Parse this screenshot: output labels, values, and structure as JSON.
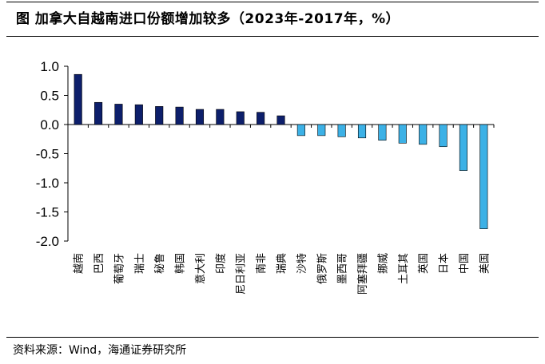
{
  "title": "图  加拿大自越南进口份额增加较多（2023年-2017年，%）",
  "source": "资料来源：Wind，海通证券研究所",
  "colors": {
    "positive": "#0d1f6b",
    "negative": "#3cb1e6"
  },
  "chart_data": {
    "type": "bar",
    "title": "图  加拿大自越南进口份额增加较多（2023年-2017年，%）",
    "xlabel": "",
    "ylabel": "",
    "ylim": [
      -2.0,
      1.0
    ],
    "yticks": [
      "1.0",
      "0.5",
      "0.0",
      "-0.5",
      "-1.0",
      "-1.5",
      "-2.0"
    ],
    "grid": false,
    "legend": "none",
    "categories": [
      "越南",
      "巴西",
      "葡萄牙",
      "瑞士",
      "秘鲁",
      "韩国",
      "意大利",
      "印度",
      "尼日利亚",
      "南非",
      "瑞典",
      "沙特",
      "俄罗斯",
      "墨西哥",
      "阿塞拜疆",
      "挪威",
      "土耳其",
      "英国",
      "日本",
      "中国",
      "美国"
    ],
    "values": [
      0.86,
      0.38,
      0.35,
      0.34,
      0.31,
      0.3,
      0.26,
      0.26,
      0.22,
      0.21,
      0.15,
      -0.19,
      -0.19,
      -0.21,
      -0.23,
      -0.27,
      -0.32,
      -0.34,
      -0.38,
      -0.79,
      -1.79
    ]
  }
}
